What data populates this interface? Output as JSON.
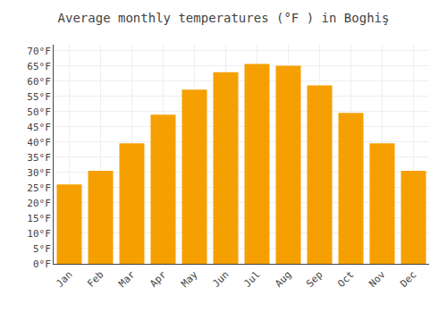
{
  "chart_data": {
    "type": "bar",
    "title": "Average monthly temperatures (°F ) in Boghiş",
    "categories": [
      "Jan",
      "Feb",
      "Mar",
      "Apr",
      "May",
      "Jun",
      "Jul",
      "Aug",
      "Sep",
      "Oct",
      "Nov",
      "Dec"
    ],
    "values": [
      26.1,
      30.6,
      39.6,
      49.0,
      57.2,
      63.0,
      65.7,
      65.1,
      58.6,
      49.6,
      39.6,
      30.6
    ],
    "color": "#F5A000",
    "ylim": [
      0,
      72
    ],
    "yticks": [
      {
        "value": 0,
        "label": "0°F"
      },
      {
        "value": 5,
        "label": "5°F"
      },
      {
        "value": 10,
        "label": "10°F"
      },
      {
        "value": 15,
        "label": "15°F"
      },
      {
        "value": 20,
        "label": "20°F"
      },
      {
        "value": 25,
        "label": "25°F"
      },
      {
        "value": 30,
        "label": "30°F"
      },
      {
        "value": 35,
        "label": "35°F"
      },
      {
        "value": 40,
        "label": "40°F"
      },
      {
        "value": 45,
        "label": "45°F"
      },
      {
        "value": 50,
        "label": "50°F"
      },
      {
        "value": 55,
        "label": "55°F"
      },
      {
        "value": 60,
        "label": "60°F"
      },
      {
        "value": 65,
        "label": "65°F"
      },
      {
        "value": 70,
        "label": "70°F"
      }
    ],
    "grid": true
  }
}
